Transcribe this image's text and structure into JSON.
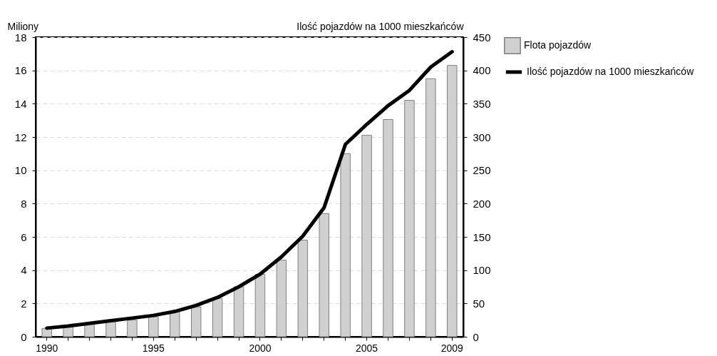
{
  "chart_data": {
    "type": "bar",
    "ylabel": "Miliony",
    "y2label": "Ilość pojazdów na 1000 mieszkańców",
    "categories": [
      "1990",
      null,
      null,
      null,
      null,
      "1995",
      null,
      null,
      null,
      null,
      "2000",
      null,
      null,
      null,
      null,
      "2005",
      null,
      null,
      null,
      "2009"
    ],
    "series": [
      {
        "name": "Flota pojazdów",
        "color": "#d0d0d0",
        "values": [
          0.5,
          0.6,
          0.8,
          0.9,
          1.0,
          1.2,
          1.5,
          1.8,
          2.3,
          3.0,
          3.75,
          4.6,
          5.8,
          7.4,
          11.0,
          12.1,
          13.05,
          14.2,
          15.5,
          16.3
        ]
      },
      {
        "name": "Ilość pojazdów na 1000 mieszkańców",
        "type": "line",
        "axis": "y2",
        "color": "#000000",
        "values": [
          13,
          16,
          20,
          24,
          28,
          32,
          38,
          47,
          59,
          75,
          94,
          120,
          151,
          194,
          289,
          319,
          347,
          370,
          405,
          428
        ]
      }
    ],
    "ylim": [
      0,
      18
    ],
    "yticks": [
      0,
      2,
      4,
      6,
      8,
      10,
      12,
      14,
      16,
      18
    ],
    "y2lim": [
      0,
      450
    ],
    "y2ticks": [
      0,
      50,
      100,
      150,
      200,
      250,
      300,
      350,
      400,
      450
    ],
    "grid": "y",
    "legend": "top right"
  }
}
